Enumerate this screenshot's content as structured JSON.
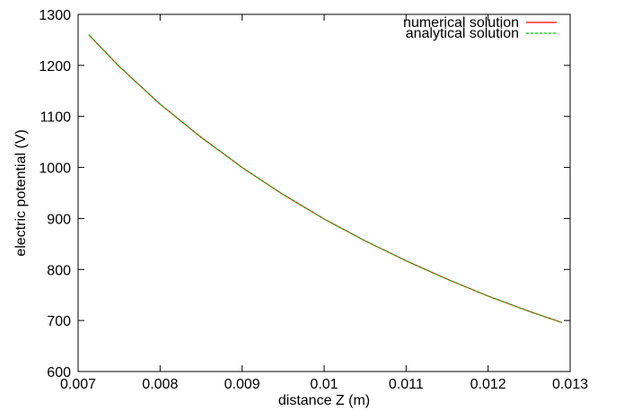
{
  "chart_data": {
    "type": "line",
    "title": "",
    "xlabel": "distance Z (m)",
    "ylabel": "electric potential (V)",
    "xlim": [
      0.007,
      0.013
    ],
    "ylim": [
      600,
      1300
    ],
    "xticks": [
      0.007,
      0.008,
      0.009,
      0.01,
      0.011,
      0.012,
      0.013
    ],
    "xtick_labels": [
      "0.007",
      "0.008",
      "0.009",
      "0.01",
      "0.011",
      "0.012",
      "0.013"
    ],
    "yticks": [
      600,
      700,
      800,
      900,
      1000,
      1100,
      1200,
      1300
    ],
    "ytick_labels": [
      "600",
      "700",
      "800",
      "900",
      "1000",
      "1100",
      "1200",
      "1300"
    ],
    "grid": false,
    "legend_position": "top-right",
    "series": [
      {
        "name": "numerical solution",
        "color": "#ff0000",
        "dash": "solid",
        "x": [
          0.00713,
          0.0075,
          0.008,
          0.0085,
          0.009,
          0.0095,
          0.01,
          0.0105,
          0.011,
          0.0115,
          0.012,
          0.0125,
          0.0129
        ],
        "y": [
          1260,
          1198,
          1124,
          1059,
          1000,
          947,
          899,
          856,
          817,
          781,
          748,
          718,
          696
        ]
      },
      {
        "name": "analytical solution",
        "color": "#00cc00",
        "dash": "dashed",
        "x": [
          0.00713,
          0.0075,
          0.008,
          0.0085,
          0.009,
          0.0095,
          0.01,
          0.0105,
          0.011,
          0.0115,
          0.012,
          0.0125,
          0.0129
        ],
        "y": [
          1260,
          1198,
          1124,
          1059,
          1000,
          947,
          899,
          856,
          817,
          781,
          748,
          718,
          696
        ]
      }
    ]
  }
}
